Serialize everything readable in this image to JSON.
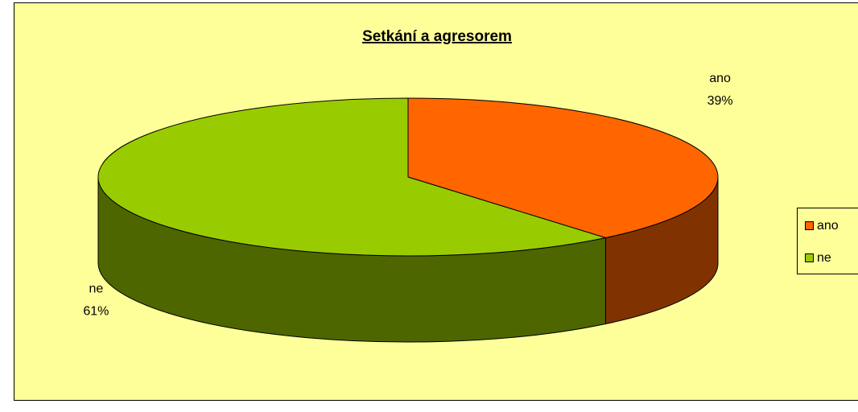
{
  "chart_data": {
    "type": "pie3d",
    "title": "Setkání a agresorem",
    "categories": [
      "ano",
      "ne"
    ],
    "values": [
      39,
      61
    ],
    "value_labels": [
      "39%",
      "61%"
    ],
    "colors": [
      "#ff6600",
      "#99cc00"
    ],
    "legend": "right"
  }
}
